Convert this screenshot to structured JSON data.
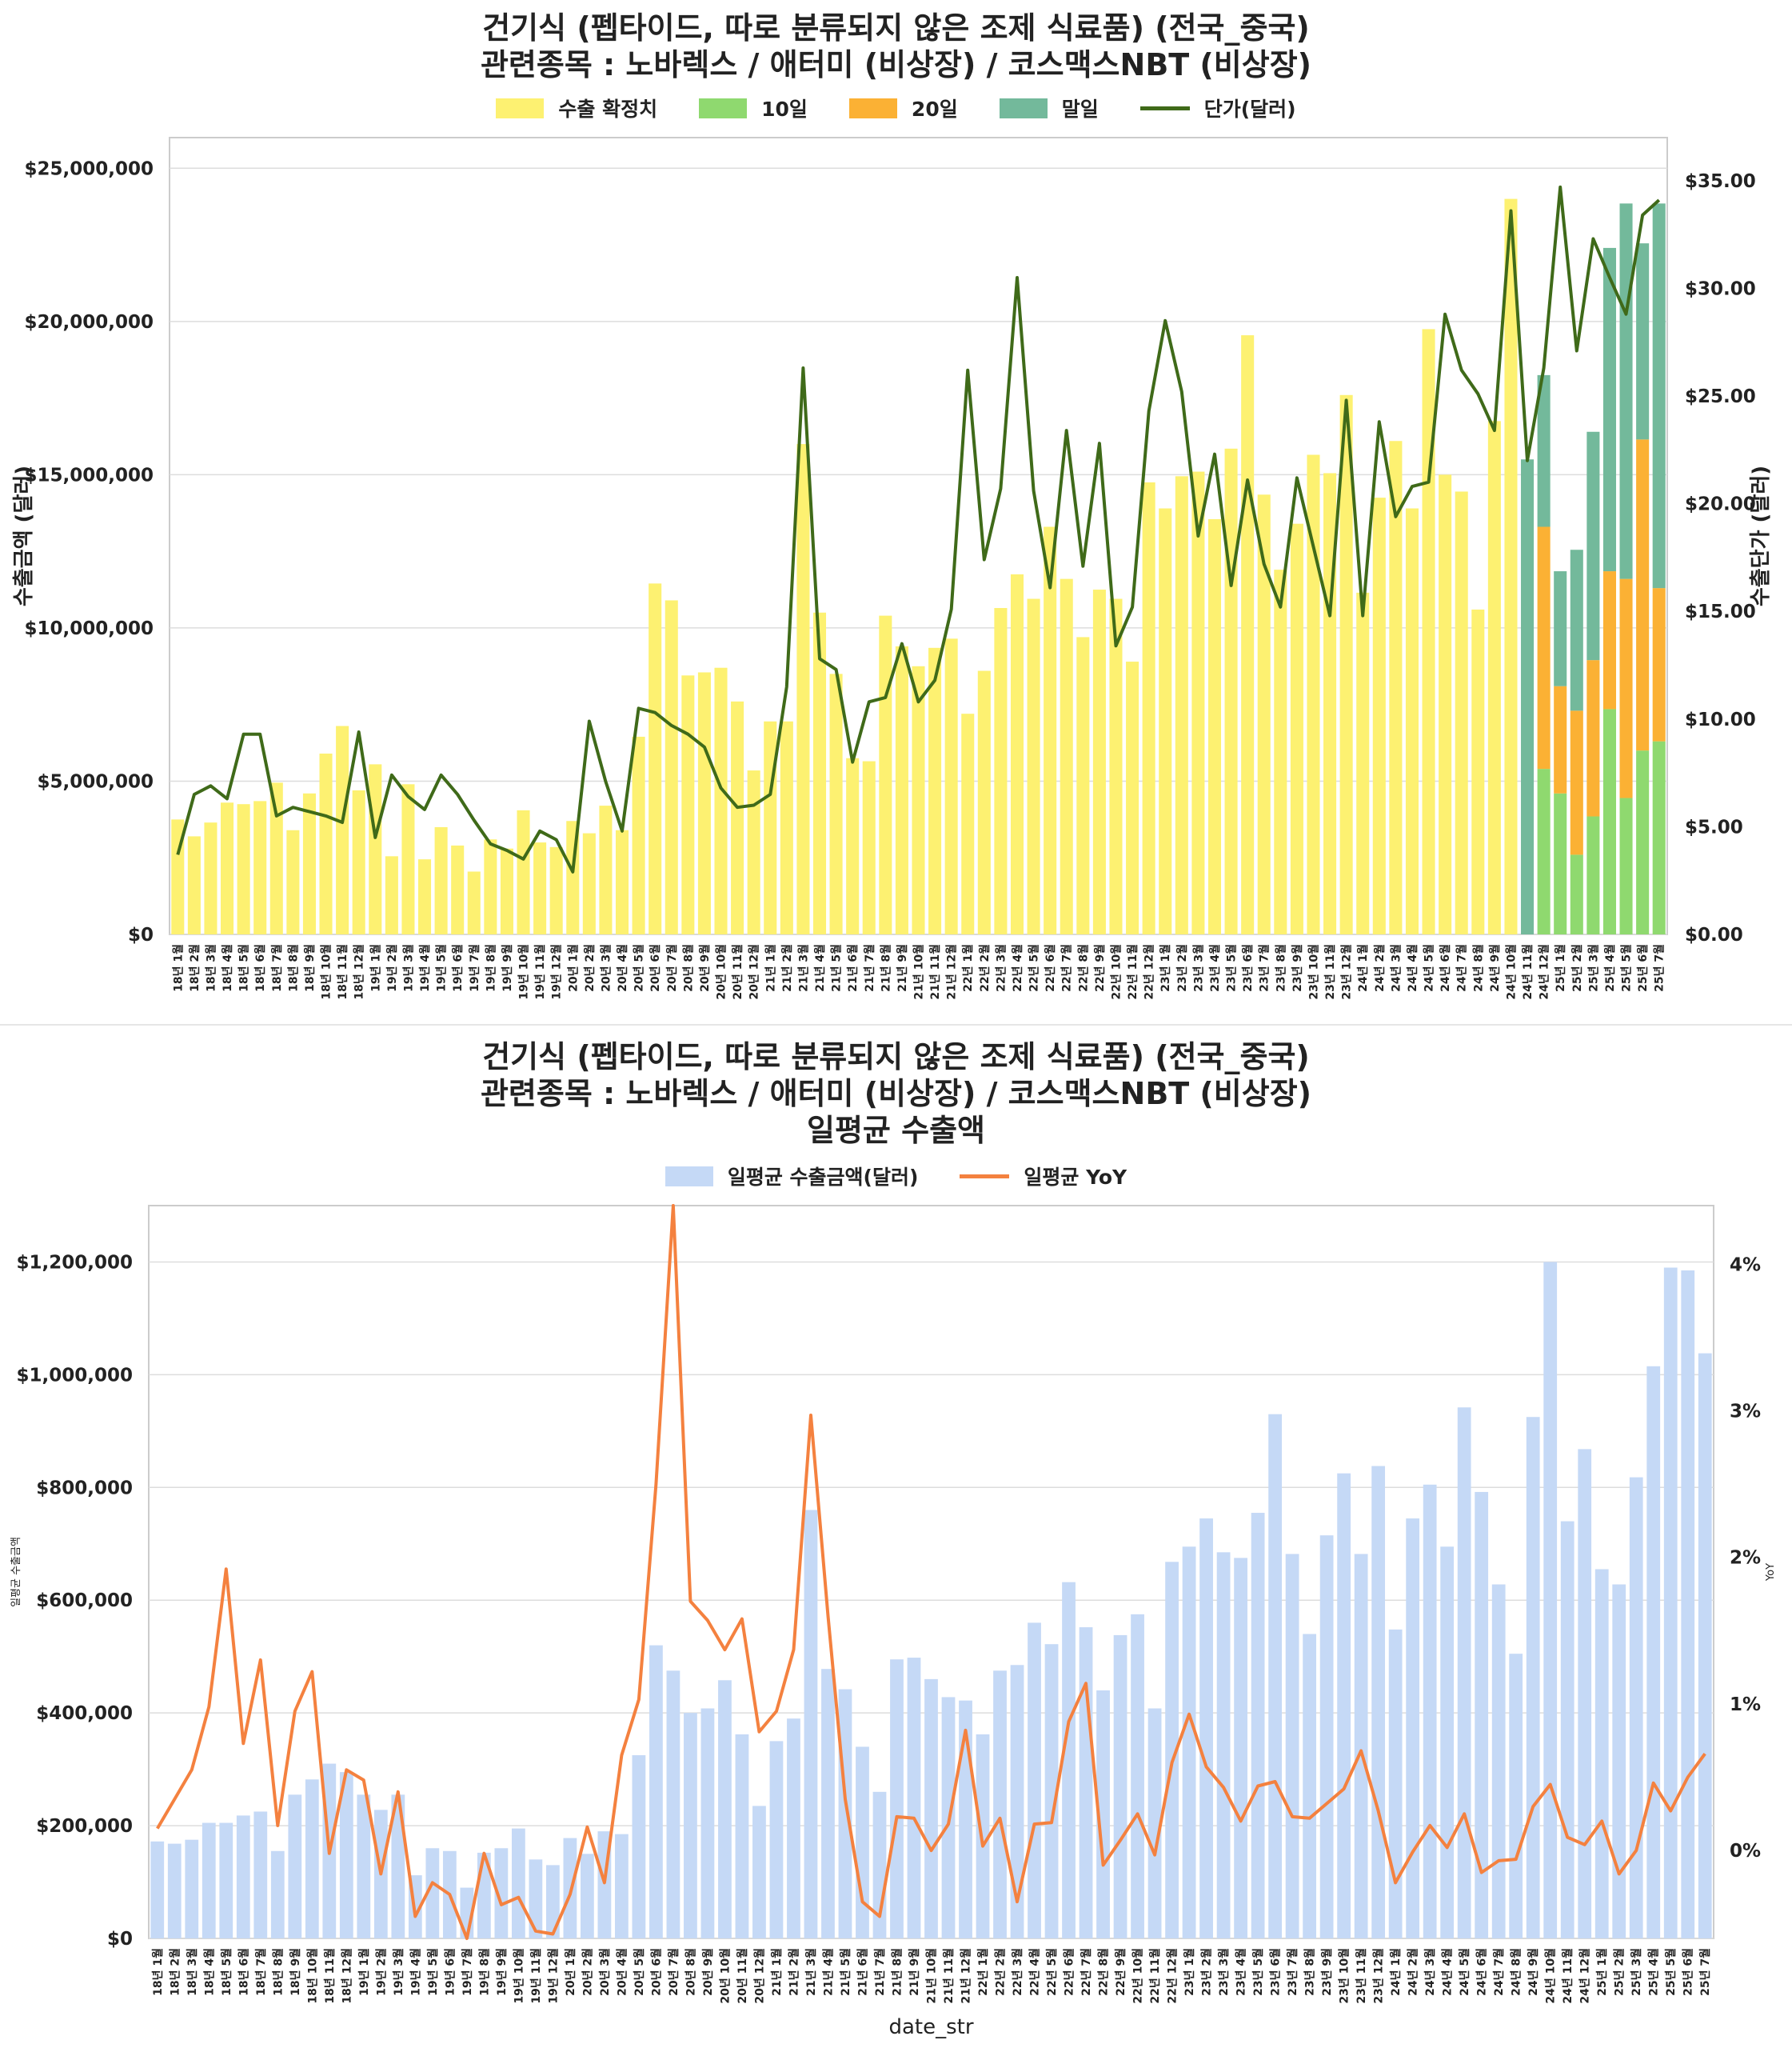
{
  "chart_data": [
    {
      "type": "bar",
      "stacked": true,
      "title_lines": [
        "건기식 (펩타이드, 따로 분류되지 않은 조제 식료품) (전국_중국)",
        "관련종목 : 노바렉스 / 애터미 (비상장) / 코스맥스NBT (비상장)"
      ],
      "ylabel": "수출금액 (달러)",
      "ylabel_right": "수출단가 (달러)",
      "ylim": [
        0,
        26000000
      ],
      "ylim_right": [
        0,
        37000000
      ],
      "ylim_right_units": [
        0,
        37
      ],
      "yticks": [
        "$0",
        "$5,000,000",
        "$10,000,000",
        "$15,000,000",
        "$20,000,000",
        "$25,000,000"
      ],
      "yticks_right": [
        "$0.00",
        "$5.00",
        "$10.00",
        "$15.00",
        "$20.00",
        "$25.00",
        "$30.00",
        "$35.00"
      ],
      "grid": true,
      "legend_position": "top-center",
      "legend": [
        "수출 확정치",
        "10일",
        "20일",
        "말일",
        "단가(달러)"
      ],
      "colors": {
        "confirmed": "#fdf171",
        "d10": "#8fd96f",
        "d20": "#fbb134",
        "end": "#73b99b",
        "price": "#3f6a19"
      },
      "categories": [
        "18년 1월",
        "18년 2월",
        "18년 3월",
        "18년 4월",
        "18년 5월",
        "18년 6월",
        "18년 7월",
        "18년 8월",
        "18년 9월",
        "18년 10월",
        "18년 11월",
        "18년 12월",
        "19년 1월",
        "19년 2월",
        "19년 3월",
        "19년 4월",
        "19년 5월",
        "19년 6월",
        "19년 7월",
        "19년 8월",
        "19년 9월",
        "19년 10월",
        "19년 11월",
        "19년 12월",
        "20년 1월",
        "20년 2월",
        "20년 3월",
        "20년 4월",
        "20년 5월",
        "20년 6월",
        "20년 7월",
        "20년 8월",
        "20년 9월",
        "20년 10월",
        "20년 11월",
        "20년 12월",
        "21년 1월",
        "21년 2월",
        "21년 3월",
        "21년 4월",
        "21년 5월",
        "21년 6월",
        "21년 7월",
        "21년 8월",
        "21년 9월",
        "21년 10월",
        "21년 11월",
        "21년 12월",
        "22년 1월",
        "22년 2월",
        "22년 3월",
        "22년 4월",
        "22년 5월",
        "22년 6월",
        "22년 7월",
        "22년 8월",
        "22년 9월",
        "22년 10월",
        "22년 11월",
        "22년 12월",
        "23년 1월",
        "23년 2월",
        "23년 3월",
        "23년 4월",
        "23년 5월",
        "23년 6월",
        "23년 7월",
        "23년 8월",
        "23년 9월",
        "23년 10월",
        "23년 11월",
        "23년 12월",
        "24년 1월",
        "24년 2월",
        "24년 3월",
        "24년 4월",
        "24년 5월",
        "24년 6월",
        "24년 7월",
        "24년 8월",
        "24년 9월",
        "24년 10월",
        "24년 11월",
        "24년 12월",
        "25년 1월",
        "25년 2월",
        "25년 3월",
        "25년 4월",
        "25년 5월",
        "25년 6월",
        "25년 7월"
      ],
      "series": [
        {
          "name": "수출 확정치",
          "values": [
            3750000,
            3200000,
            3650000,
            4300000,
            4250000,
            4350000,
            4950000,
            3400000,
            4600000,
            5900000,
            6800000,
            4700000,
            5550000,
            2550000,
            4900000,
            2450000,
            3500000,
            2900000,
            2050000,
            3100000,
            2800000,
            4050000,
            3000000,
            2850000,
            3700000,
            3300000,
            4200000,
            3400000,
            6450000,
            11450000,
            10900000,
            8450000,
            8550000,
            8700000,
            7600000,
            5350000,
            6950000,
            6950000,
            16000000,
            10500000,
            8500000,
            5750000,
            5650000,
            10400000,
            9400000,
            8750000,
            9350000,
            9650000,
            7200000,
            8600000,
            10650000,
            11750000,
            10950000,
            13300000,
            11600000,
            9700000,
            11250000,
            10950000,
            8900000,
            14750000,
            13900000,
            14950000,
            15100000,
            13550000,
            15850000,
            19550000,
            14350000,
            11900000,
            13400000,
            15650000,
            15050000,
            17600000,
            11150000,
            14250000,
            16100000,
            13900000,
            19750000,
            15000000,
            14450000,
            10600000,
            16750000,
            24000000,
            0,
            0,
            0,
            0,
            0,
            0,
            0,
            0,
            0
          ]
        },
        {
          "name": "10일",
          "values": [
            0,
            0,
            0,
            0,
            0,
            0,
            0,
            0,
            0,
            0,
            0,
            0,
            0,
            0,
            0,
            0,
            0,
            0,
            0,
            0,
            0,
            0,
            0,
            0,
            0,
            0,
            0,
            0,
            0,
            0,
            0,
            0,
            0,
            0,
            0,
            0,
            0,
            0,
            0,
            0,
            0,
            0,
            0,
            0,
            0,
            0,
            0,
            0,
            0,
            0,
            0,
            0,
            0,
            0,
            0,
            0,
            0,
            0,
            0,
            0,
            0,
            0,
            0,
            0,
            0,
            0,
            0,
            0,
            0,
            0,
            0,
            0,
            0,
            0,
            0,
            0,
            0,
            0,
            0,
            0,
            0,
            0,
            0,
            5400000,
            4600000,
            2600000,
            3850000,
            7350000,
            4450000,
            6000000,
            6300000
          ]
        },
        {
          "name": "20일",
          "values": [
            0,
            0,
            0,
            0,
            0,
            0,
            0,
            0,
            0,
            0,
            0,
            0,
            0,
            0,
            0,
            0,
            0,
            0,
            0,
            0,
            0,
            0,
            0,
            0,
            0,
            0,
            0,
            0,
            0,
            0,
            0,
            0,
            0,
            0,
            0,
            0,
            0,
            0,
            0,
            0,
            0,
            0,
            0,
            0,
            0,
            0,
            0,
            0,
            0,
            0,
            0,
            0,
            0,
            0,
            0,
            0,
            0,
            0,
            0,
            0,
            0,
            0,
            0,
            0,
            0,
            0,
            0,
            0,
            0,
            0,
            0,
            0,
            0,
            0,
            0,
            0,
            0,
            0,
            0,
            0,
            0,
            0,
            0,
            7900000,
            3500000,
            4700000,
            5100000,
            4500000,
            7150000,
            10150000,
            5000000
          ]
        },
        {
          "name": "말일",
          "values": [
            0,
            0,
            0,
            0,
            0,
            0,
            0,
            0,
            0,
            0,
            0,
            0,
            0,
            0,
            0,
            0,
            0,
            0,
            0,
            0,
            0,
            0,
            0,
            0,
            0,
            0,
            0,
            0,
            0,
            0,
            0,
            0,
            0,
            0,
            0,
            0,
            0,
            0,
            0,
            0,
            0,
            0,
            0,
            0,
            0,
            0,
            0,
            0,
            0,
            0,
            0,
            0,
            0,
            0,
            0,
            0,
            0,
            0,
            0,
            0,
            0,
            0,
            0,
            0,
            0,
            0,
            0,
            0,
            0,
            0,
            0,
            0,
            0,
            0,
            0,
            0,
            0,
            0,
            0,
            0,
            0,
            0,
            15500000,
            4950000,
            3750000,
            5250000,
            7450000,
            10550000,
            12250000,
            6400000,
            12550000
          ]
        },
        {
          "name": "단가(달러)",
          "axis": "right",
          "values": [
            3.7,
            6.5,
            6.9,
            6.3,
            9.3,
            9.3,
            5.5,
            5.9,
            5.7,
            5.5,
            5.2,
            9.4,
            4.5,
            7.4,
            6.4,
            5.8,
            7.4,
            6.5,
            5.3,
            4.2,
            3.9,
            3.5,
            4.8,
            4.4,
            2.9,
            9.9,
            7.1,
            4.8,
            10.5,
            10.3,
            9.7,
            9.3,
            8.7,
            6.8,
            5.9,
            6.0,
            6.5,
            11.5,
            26.3,
            12.8,
            12.3,
            8.0,
            10.8,
            11.0,
            13.5,
            10.8,
            11.8,
            15.1,
            26.2,
            17.4,
            20.7,
            30.5,
            20.6,
            16.1,
            23.4,
            17.1,
            22.8,
            13.4,
            15.2,
            24.3,
            28.5,
            25.2,
            18.5,
            22.3,
            16.2,
            21.1,
            17.2,
            15.2,
            21.2,
            18.0,
            14.8,
            24.8,
            14.8,
            23.8,
            19.4,
            20.8,
            21.0,
            28.8,
            26.2,
            25.1,
            23.4,
            33.6,
            22.0,
            26.3,
            34.7,
            27.1,
            32.3,
            30.5,
            28.8,
            33.4,
            34.1
          ]
        }
      ]
    },
    {
      "type": "bar",
      "title_lines": [
        "건기식 (펩타이드, 따로 분류되지 않은 조제 식료품) (전국_중국)",
        "관련종목 : 노바렉스 / 애터미 (비상장) / 코스맥스NBT (비상장)",
        "일평균 수출액"
      ],
      "xlabel": "date_str",
      "ylabel": "일평균 수출금액",
      "ylabel_right": "YoY",
      "ylim": [
        0,
        1300000
      ],
      "ylim_right": [
        -0.6,
        4.4
      ],
      "yticks": [
        "$0",
        "$200,000",
        "$400,000",
        "$600,000",
        "$800,000",
        "$1,000,000",
        "$1,200,000"
      ],
      "yticks_right": [
        "0%",
        "1%",
        "2%",
        "3%",
        "4%"
      ],
      "grid": true,
      "legend_position": "top-center",
      "legend": [
        "일평균 수출금액(달러)",
        "일평균 YoY"
      ],
      "colors": {
        "bar": "#c5d9f6",
        "line": "#f4813f"
      },
      "categories": [
        "18년 1월",
        "18년 2월",
        "18년 3월",
        "18년 4월",
        "18년 5월",
        "18년 6월",
        "18년 7월",
        "18년 8월",
        "18년 9월",
        "18년 10월",
        "18년 11월",
        "18년 12월",
        "19년 1월",
        "19년 2월",
        "19년 3월",
        "19년 4월",
        "19년 5월",
        "19년 6월",
        "19년 7월",
        "19년 8월",
        "19년 9월",
        "19년 10월",
        "19년 11월",
        "19년 12월",
        "20년 1월",
        "20년 2월",
        "20년 3월",
        "20년 4월",
        "20년 5월",
        "20년 6월",
        "20년 7월",
        "20년 8월",
        "20년 9월",
        "20년 10월",
        "20년 11월",
        "20년 12월",
        "21년 1월",
        "21년 2월",
        "21년 3월",
        "21년 4월",
        "21년 5월",
        "21년 6월",
        "21년 7월",
        "21년 8월",
        "21년 9월",
        "21년 10월",
        "21년 11월",
        "21년 12월",
        "22년 1월",
        "22년 2월",
        "22년 3월",
        "22년 4월",
        "22년 5월",
        "22년 6월",
        "22년 7월",
        "22년 8월",
        "22년 9월",
        "22년 10월",
        "22년 11월",
        "22년 12월",
        "23년 1월",
        "23년 2월",
        "23년 3월",
        "23년 4월",
        "23년 5월",
        "23년 6월",
        "23년 7월",
        "23년 8월",
        "23년 9월",
        "23년 10월",
        "23년 11월",
        "23년 12월",
        "24년 1월",
        "24년 2월",
        "24년 3월",
        "24년 4월",
        "24년 5월",
        "24년 6월",
        "24년 7월",
        "24년 8월",
        "24년 9월",
        "24년 10월",
        "24년 11월",
        "24년 12월",
        "25년 1월",
        "25년 2월",
        "25년 3월",
        "25년 4월",
        "25년 5월",
        "25년 6월",
        "25년 7월"
      ],
      "series": [
        {
          "name": "일평균 수출금액(달러)",
          "values": [
            172000,
            168000,
            175000,
            205000,
            205000,
            218000,
            225000,
            155000,
            255000,
            282000,
            310000,
            295000,
            255000,
            228000,
            255000,
            112000,
            160000,
            155000,
            90000,
            152000,
            160000,
            195000,
            140000,
            130000,
            178000,
            150000,
            190000,
            185000,
            325000,
            520000,
            475000,
            400000,
            408000,
            458000,
            362000,
            235000,
            350000,
            390000,
            760000,
            478000,
            442000,
            340000,
            260000,
            495000,
            498000,
            460000,
            428000,
            422000,
            362000,
            475000,
            485000,
            560000,
            522000,
            632000,
            552000,
            440000,
            538000,
            575000,
            408000,
            668000,
            695000,
            745000,
            685000,
            675000,
            755000,
            930000,
            682000,
            540000,
            715000,
            825000,
            682000,
            838000,
            548000,
            745000,
            805000,
            695000,
            942000,
            792000,
            628000,
            505000,
            925000,
            1200000,
            740000,
            868000,
            655000,
            628000,
            818000,
            1015000,
            1190000,
            1185000,
            1038000
          ]
        },
        {
          "name": "일평균 YoY",
          "axis": "right",
          "values": [
            0.15,
            0.35,
            0.55,
            0.98,
            1.92,
            0.73,
            1.3,
            0.17,
            0.95,
            1.22,
            -0.02,
            0.55,
            0.48,
            -0.16,
            0.4,
            -0.45,
            -0.22,
            -0.3,
            -0.6,
            -0.02,
            -0.37,
            -0.32,
            -0.55,
            -0.57,
            -0.3,
            0.16,
            -0.22,
            0.65,
            1.03,
            2.5,
            4.4,
            1.7,
            1.57,
            1.37,
            1.58,
            0.81,
            0.95,
            1.37,
            2.97,
            1.6,
            0.35,
            -0.35,
            -0.45,
            0.23,
            0.22,
            0.0,
            0.18,
            0.82,
            0.03,
            0.22,
            -0.35,
            0.18,
            0.19,
            0.88,
            1.14,
            -0.1,
            0.07,
            0.25,
            -0.03,
            0.6,
            0.93,
            0.57,
            0.43,
            0.2,
            0.44,
            0.47,
            0.23,
            0.22,
            0.32,
            0.42,
            0.68,
            0.27,
            -0.22,
            -0.01,
            0.17,
            0.02,
            0.25,
            -0.15,
            -0.07,
            -0.06,
            0.3,
            0.45,
            0.09,
            0.04,
            0.2,
            -0.16,
            0.0,
            0.46,
            0.27,
            0.5,
            0.66
          ]
        }
      ]
    }
  ]
}
